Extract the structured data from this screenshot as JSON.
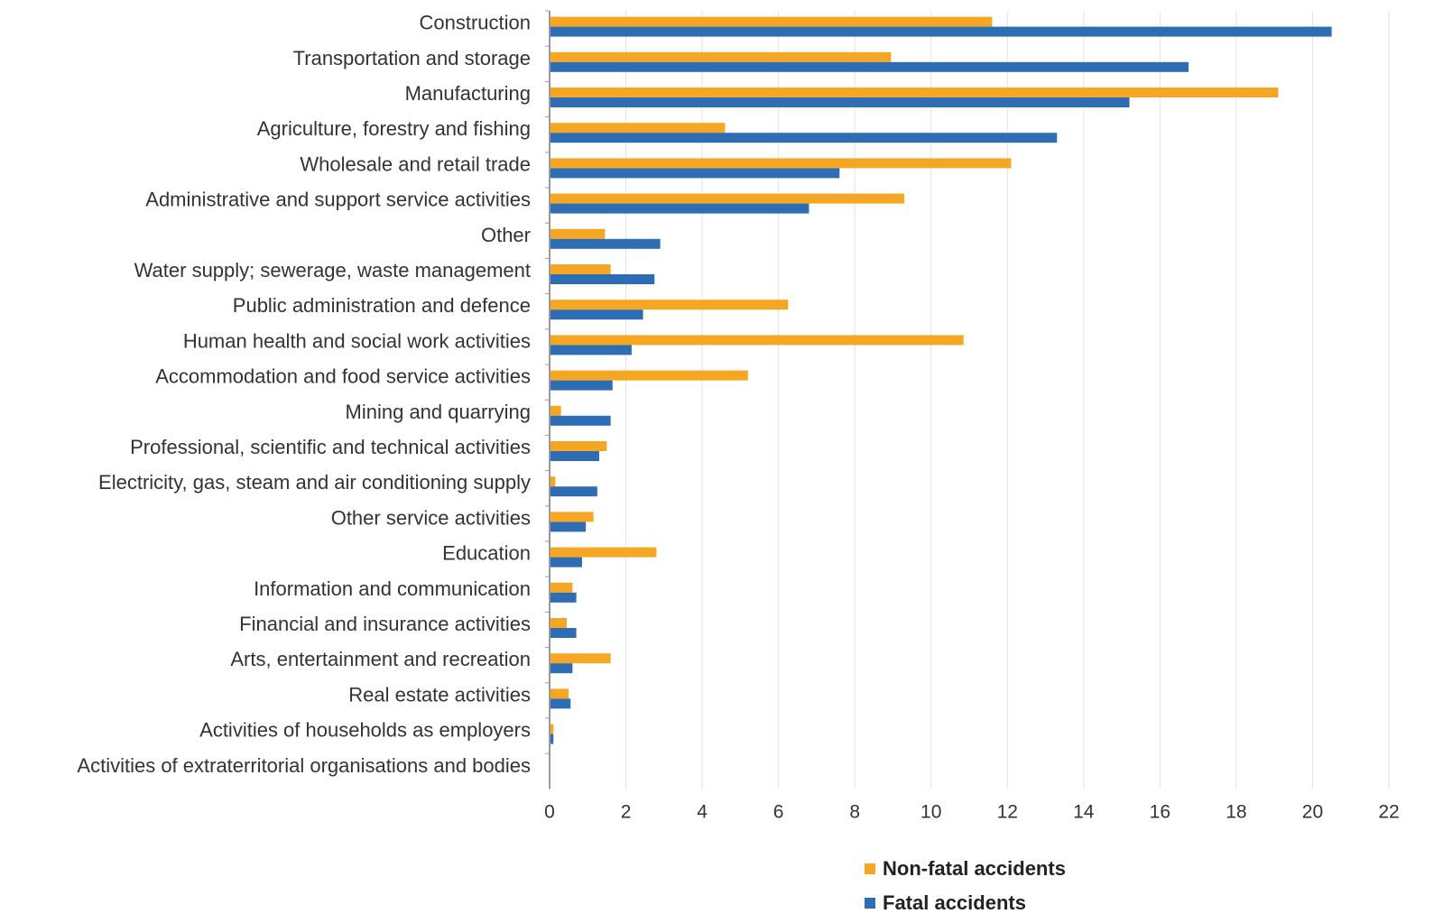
{
  "chart_data": {
    "type": "bar",
    "orientation": "horizontal",
    "categories": [
      "Construction",
      "Transportation and storage",
      "Manufacturing",
      "Agriculture, forestry and fishing",
      "Wholesale and retail trade",
      "Administrative and support service activities",
      "Other",
      "Water supply; sewerage, waste management",
      "Public administration and defence",
      "Human health and social work activities",
      "Accommodation and food service activities",
      "Mining and quarrying",
      "Professional, scientific and technical activities",
      "Electricity, gas, steam and air conditioning supply",
      "Other service activities",
      "Education",
      "Information and communication",
      "Financial and insurance activities",
      "Arts, entertainment and recreation",
      "Real estate activities",
      "Activities of households as employers",
      "Activities of extraterritorial organisations and bodies"
    ],
    "series": [
      {
        "name": "Non-fatal accidents",
        "color": "#F5A623",
        "values": [
          11.6,
          8.95,
          19.1,
          4.6,
          12.1,
          9.3,
          1.45,
          1.6,
          6.25,
          10.85,
          5.2,
          0.3,
          1.5,
          0.15,
          1.15,
          2.8,
          0.6,
          0.45,
          1.6,
          0.5,
          0.1,
          0.02
        ]
      },
      {
        "name": "Fatal accidents",
        "color": "#2E6DB4",
        "values": [
          20.5,
          16.75,
          15.2,
          13.3,
          7.6,
          6.8,
          2.9,
          2.75,
          2.45,
          2.15,
          1.65,
          1.6,
          1.3,
          1.25,
          0.95,
          0.85,
          0.7,
          0.7,
          0.6,
          0.55,
          0.1,
          0.02
        ]
      }
    ],
    "xlim": [
      0,
      22
    ],
    "xticks": [
      0,
      2,
      4,
      6,
      8,
      10,
      12,
      14,
      16,
      18,
      20,
      22
    ],
    "grid": true,
    "legend_position": "bottom"
  }
}
